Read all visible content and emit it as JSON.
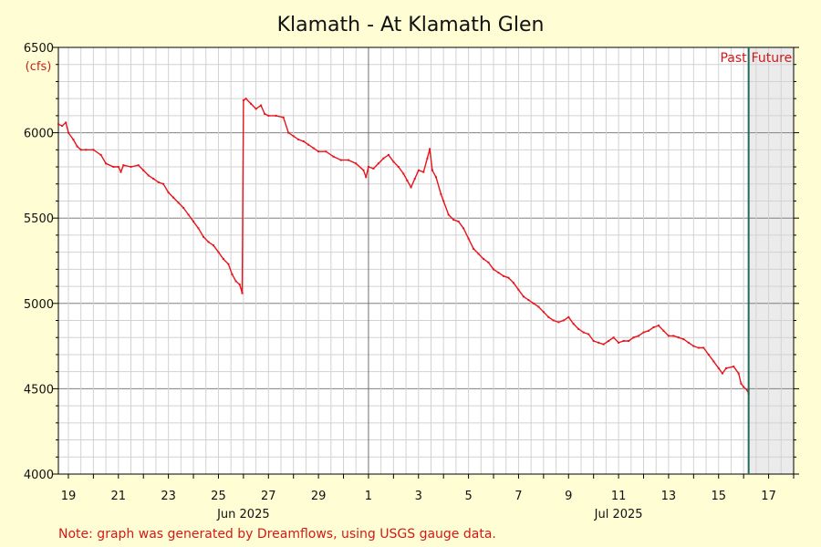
{
  "chart_data": {
    "type": "line",
    "title": "Klamath - At Klamath Glen",
    "ylabel": "(cfs)",
    "ylim": [
      4000,
      6500
    ],
    "y_ticks": [
      4000,
      4500,
      5000,
      5500,
      6000,
      6500
    ],
    "xlim": [
      18.6,
      48.0
    ],
    "x_tick_labels": [
      {
        "x": 19,
        "label": "19"
      },
      {
        "x": 21,
        "label": "21"
      },
      {
        "x": 23,
        "label": "23"
      },
      {
        "x": 25,
        "label": "25"
      },
      {
        "x": 27,
        "label": "27"
      },
      {
        "x": 29,
        "label": "29"
      },
      {
        "x": 31,
        "label": "1"
      },
      {
        "x": 33,
        "label": "3"
      },
      {
        "x": 35,
        "label": "5"
      },
      {
        "x": 37,
        "label": "7"
      },
      {
        "x": 39,
        "label": "9"
      },
      {
        "x": 41,
        "label": "11"
      },
      {
        "x": 43,
        "label": "13"
      },
      {
        "x": 45,
        "label": "15"
      },
      {
        "x": 47,
        "label": "17"
      }
    ],
    "month_labels": [
      {
        "x": 26,
        "label": "Jun 2025"
      },
      {
        "x": 41,
        "label": "Jul 2025"
      }
    ],
    "month_boundary": 31,
    "now_x": 46.2,
    "past_label": "Past",
    "future_label": "Future",
    "grid": true,
    "series": [
      {
        "color": "#e8141c",
        "points": [
          [
            18.6,
            6050
          ],
          [
            18.75,
            6040
          ],
          [
            18.9,
            6060
          ],
          [
            19.0,
            6000
          ],
          [
            19.2,
            5960
          ],
          [
            19.35,
            5920
          ],
          [
            19.5,
            5900
          ],
          [
            19.7,
            5900
          ],
          [
            20.0,
            5900
          ],
          [
            20.3,
            5870
          ],
          [
            20.5,
            5820
          ],
          [
            20.8,
            5800
          ],
          [
            21.0,
            5800
          ],
          [
            21.1,
            5770
          ],
          [
            21.2,
            5810
          ],
          [
            21.5,
            5800
          ],
          [
            21.8,
            5810
          ],
          [
            22.0,
            5780
          ],
          [
            22.2,
            5750
          ],
          [
            22.4,
            5730
          ],
          [
            22.6,
            5710
          ],
          [
            22.8,
            5700
          ],
          [
            23.0,
            5650
          ],
          [
            23.2,
            5620
          ],
          [
            23.4,
            5590
          ],
          [
            23.6,
            5560
          ],
          [
            23.8,
            5520
          ],
          [
            24.0,
            5480
          ],
          [
            24.2,
            5440
          ],
          [
            24.4,
            5390
          ],
          [
            24.6,
            5360
          ],
          [
            24.8,
            5340
          ],
          [
            25.0,
            5300
          ],
          [
            25.2,
            5260
          ],
          [
            25.4,
            5230
          ],
          [
            25.55,
            5170
          ],
          [
            25.7,
            5130
          ],
          [
            25.85,
            5110
          ],
          [
            25.95,
            5060
          ],
          [
            26.0,
            6190
          ],
          [
            26.1,
            6200
          ],
          [
            26.3,
            6170
          ],
          [
            26.5,
            6140
          ],
          [
            26.7,
            6160
          ],
          [
            26.85,
            6110
          ],
          [
            27.0,
            6100
          ],
          [
            27.3,
            6100
          ],
          [
            27.6,
            6090
          ],
          [
            27.8,
            6000
          ],
          [
            28.0,
            5980
          ],
          [
            28.2,
            5960
          ],
          [
            28.4,
            5950
          ],
          [
            28.6,
            5930
          ],
          [
            28.8,
            5910
          ],
          [
            29.0,
            5890
          ],
          [
            29.3,
            5890
          ],
          [
            29.6,
            5860
          ],
          [
            29.9,
            5840
          ],
          [
            30.2,
            5840
          ],
          [
            30.5,
            5820
          ],
          [
            30.8,
            5780
          ],
          [
            30.9,
            5740
          ],
          [
            31.0,
            5800
          ],
          [
            31.2,
            5790
          ],
          [
            31.4,
            5820
          ],
          [
            31.6,
            5850
          ],
          [
            31.8,
            5870
          ],
          [
            32.0,
            5830
          ],
          [
            32.2,
            5800
          ],
          [
            32.4,
            5760
          ],
          [
            32.55,
            5720
          ],
          [
            32.7,
            5680
          ],
          [
            32.85,
            5730
          ],
          [
            33.0,
            5780
          ],
          [
            33.2,
            5770
          ],
          [
            33.35,
            5850
          ],
          [
            33.45,
            5905
          ],
          [
            33.55,
            5780
          ],
          [
            33.7,
            5740
          ],
          [
            33.9,
            5640
          ],
          [
            34.0,
            5600
          ],
          [
            34.2,
            5520
          ],
          [
            34.4,
            5490
          ],
          [
            34.6,
            5480
          ],
          [
            34.8,
            5440
          ],
          [
            35.0,
            5380
          ],
          [
            35.2,
            5320
          ],
          [
            35.4,
            5290
          ],
          [
            35.6,
            5260
          ],
          [
            35.8,
            5240
          ],
          [
            36.0,
            5200
          ],
          [
            36.2,
            5180
          ],
          [
            36.4,
            5160
          ],
          [
            36.6,
            5150
          ],
          [
            36.8,
            5120
          ],
          [
            37.0,
            5080
          ],
          [
            37.2,
            5040
          ],
          [
            37.4,
            5020
          ],
          [
            37.6,
            5000
          ],
          [
            37.8,
            4980
          ],
          [
            38.0,
            4950
          ],
          [
            38.2,
            4920
          ],
          [
            38.4,
            4900
          ],
          [
            38.6,
            4890
          ],
          [
            38.8,
            4900
          ],
          [
            39.0,
            4920
          ],
          [
            39.2,
            4880
          ],
          [
            39.4,
            4850
          ],
          [
            39.6,
            4830
          ],
          [
            39.8,
            4820
          ],
          [
            40.0,
            4780
          ],
          [
            40.2,
            4770
          ],
          [
            40.4,
            4760
          ],
          [
            40.6,
            4780
          ],
          [
            40.8,
            4800
          ],
          [
            41.0,
            4770
          ],
          [
            41.2,
            4780
          ],
          [
            41.4,
            4780
          ],
          [
            41.6,
            4800
          ],
          [
            41.8,
            4810
          ],
          [
            42.0,
            4830
          ],
          [
            42.2,
            4840
          ],
          [
            42.4,
            4860
          ],
          [
            42.6,
            4870
          ],
          [
            42.8,
            4840
          ],
          [
            43.0,
            4810
          ],
          [
            43.2,
            4810
          ],
          [
            43.4,
            4800
          ],
          [
            43.6,
            4790
          ],
          [
            43.8,
            4770
          ],
          [
            44.0,
            4750
          ],
          [
            44.2,
            4740
          ],
          [
            44.4,
            4740
          ],
          [
            44.6,
            4700
          ],
          [
            44.8,
            4660
          ],
          [
            45.0,
            4620
          ],
          [
            45.15,
            4590
          ],
          [
            45.3,
            4620
          ],
          [
            45.6,
            4630
          ],
          [
            45.8,
            4590
          ],
          [
            45.9,
            4530
          ],
          [
            46.0,
            4510
          ],
          [
            46.15,
            4490
          ],
          [
            46.2,
            4470
          ]
        ]
      }
    ]
  },
  "note": "Note: graph was generated by Dreamflows, using USGS gauge data."
}
